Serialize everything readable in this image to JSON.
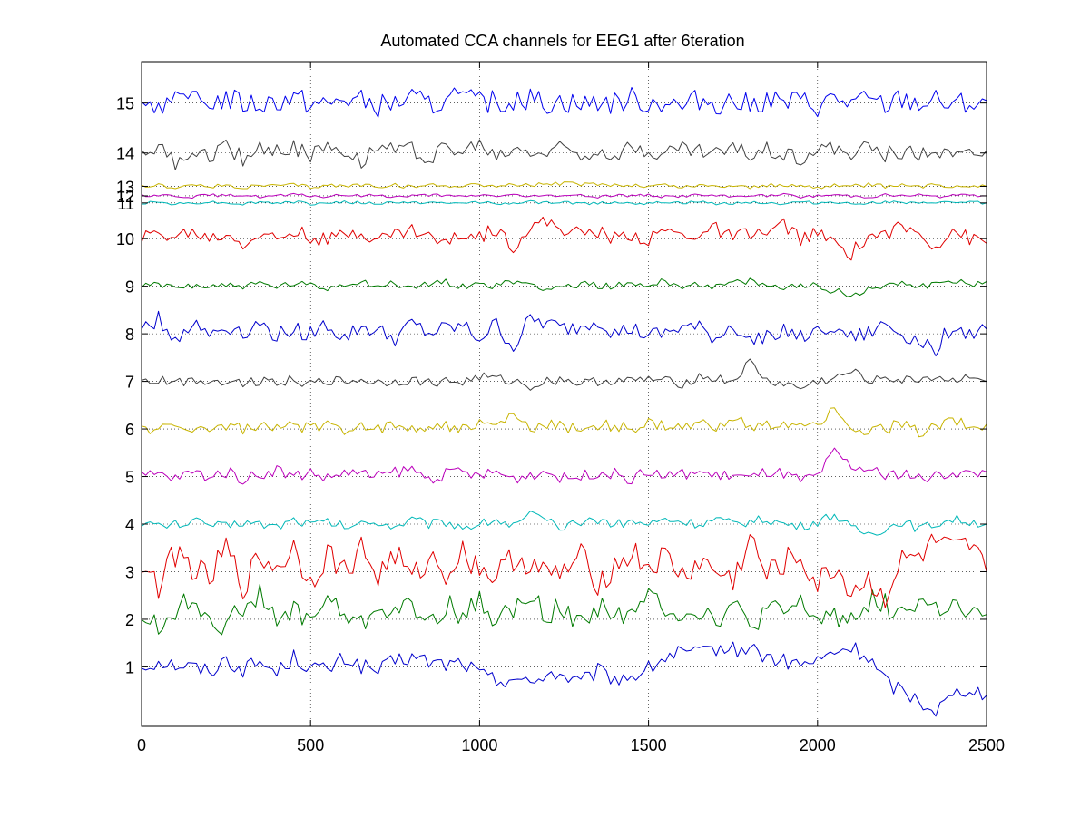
{
  "chart_data": {
    "type": "line",
    "title": "Automated CCA channels for EEG1 after  6teration",
    "xlabel": "",
    "ylabel": "",
    "xlim": [
      0,
      2500
    ],
    "xticks": [
      0,
      500,
      1000,
      1500,
      2000,
      2500
    ],
    "xtick_labels": [
      "0",
      "500",
      "1000",
      "1500",
      "2000",
      "2500"
    ],
    "grid": true,
    "ytick_labels": [
      "1",
      "2",
      "3",
      "4",
      "5",
      "6",
      "7",
      "8",
      "9",
      "10",
      "11",
      "12",
      "13",
      "14",
      "15"
    ],
    "x": [
      0,
      50,
      100,
      150,
      200,
      250,
      300,
      350,
      400,
      450,
      500,
      550,
      600,
      650,
      700,
      750,
      800,
      850,
      900,
      950,
      1000,
      1050,
      1100,
      1150,
      1200,
      1250,
      1300,
      1350,
      1400,
      1450,
      1500,
      1550,
      1600,
      1650,
      1700,
      1750,
      1800,
      1850,
      1900,
      1950,
      2000,
      2050,
      2100,
      2150,
      2200,
      2250,
      2300,
      2350,
      2400,
      2450,
      2500
    ],
    "series": [
      {
        "name": "1",
        "color": "#0000cc",
        "offset": 1,
        "amp": 0.35,
        "values": [
          0.0,
          0.12,
          0.05,
          0.0,
          -0.1,
          0.15,
          -0.05,
          0.1,
          -0.12,
          0.2,
          0.0,
          -0.08,
          0.18,
          0.02,
          -0.1,
          0.12,
          0.2,
          0.1,
          0.05,
          0.1,
          -0.15,
          -0.3,
          -0.2,
          -0.4,
          -0.1,
          -0.2,
          -0.35,
          -0.1,
          -0.25,
          -0.2,
          -0.05,
          0.2,
          0.3,
          0.25,
          0.4,
          0.35,
          0.4,
          0.2,
          0.1,
          0.05,
          0.1,
          0.3,
          0.4,
          0.2,
          -0.3,
          -0.5,
          -0.7,
          -0.9,
          -0.6,
          -0.4,
          -0.6
        ]
      },
      {
        "name": "2",
        "color": "#007a00",
        "offset": 2,
        "amp": 0.5,
        "values": [
          0.1,
          -0.2,
          0.2,
          0.4,
          0.1,
          -0.2,
          0.3,
          0.5,
          -0.1,
          0.2,
          0.0,
          0.4,
          0.1,
          -0.15,
          0.3,
          0.15,
          0.25,
          -0.1,
          0.3,
          0.1,
          0.35,
          0.0,
          0.2,
          0.4,
          0.15,
          0.2,
          -0.1,
          0.3,
          0.2,
          0.0,
          0.5,
          0.3,
          0.1,
          0.2,
          0.0,
          0.3,
          -0.2,
          0.2,
          0.1,
          0.3,
          0.0,
          0.1,
          0.0,
          0.4,
          0.3,
          0.1,
          0.4,
          0.2,
          0.3,
          0.0,
          0.1
        ]
      },
      {
        "name": "3",
        "color": "#e00000",
        "offset": 3,
        "amp": 0.6,
        "values": [
          0.2,
          -0.3,
          0.4,
          0.1,
          -0.2,
          0.5,
          -0.3,
          0.3,
          0.1,
          0.5,
          -0.2,
          0.4,
          0.0,
          0.5,
          -0.1,
          0.4,
          -0.2,
          0.3,
          0.0,
          0.4,
          0.1,
          -0.1,
          0.3,
          0.2,
          -0.1,
          0.0,
          0.3,
          -0.2,
          0.1,
          0.4,
          0.1,
          0.3,
          -0.1,
          0.2,
          0.0,
          -0.2,
          0.7,
          -0.1,
          0.2,
          0.3,
          -0.3,
          0.1,
          -0.4,
          -0.2,
          -0.5,
          0.2,
          0.3,
          0.6,
          0.4,
          0.5,
          0.0
        ]
      },
      {
        "name": "4",
        "color": "#00b8b8",
        "offset": 4,
        "amp": 0.2,
        "values": [
          0.05,
          -0.05,
          0.0,
          0.05,
          0.0,
          -0.05,
          0.05,
          0.0,
          -0.05,
          0.1,
          0.0,
          0.05,
          -0.05,
          0.0,
          0.05,
          -0.05,
          0.1,
          0.0,
          0.05,
          -0.05,
          0.0,
          0.1,
          -0.05,
          0.2,
          0.05,
          -0.1,
          0.05,
          0.1,
          0.0,
          0.05,
          0.0,
          0.1,
          0.05,
          0.0,
          0.1,
          0.0,
          0.05,
          0.1,
          0.0,
          -0.05,
          0.05,
          0.2,
          -0.1,
          -0.2,
          -0.1,
          0.05,
          -0.1,
          0.0,
          0.1,
          0.05,
          0.0
        ]
      },
      {
        "name": "5",
        "color": "#bb00bb",
        "offset": 5,
        "amp": 0.25,
        "values": [
          0.0,
          0.05,
          -0.05,
          0.1,
          0.0,
          0.1,
          -0.05,
          0.05,
          0.15,
          0.0,
          0.1,
          -0.05,
          0.1,
          0.05,
          0.0,
          0.1,
          0.15,
          -0.05,
          0.05,
          0.1,
          0.0,
          0.1,
          -0.05,
          0.05,
          0.1,
          -0.05,
          0.0,
          0.1,
          0.05,
          -0.05,
          0.1,
          0.0,
          0.05,
          0.1,
          0.0,
          0.05,
          -0.05,
          0.1,
          0.05,
          -0.1,
          0.0,
          0.5,
          0.2,
          0.15,
          0.0,
          0.1,
          -0.05,
          0.0,
          0.1,
          0.05,
          0.1
        ]
      },
      {
        "name": "6",
        "color": "#c8b400",
        "offset": 6,
        "amp": 0.25,
        "values": [
          0.0,
          0.02,
          0.0,
          0.05,
          -0.02,
          0.08,
          0.0,
          0.05,
          -0.02,
          0.1,
          0.0,
          0.05,
          0.0,
          0.1,
          0.0,
          0.08,
          0.0,
          0.1,
          0.05,
          0.0,
          0.1,
          0.05,
          0.3,
          0.0,
          0.1,
          0.05,
          0.0,
          0.1,
          0.05,
          0.0,
          0.1,
          0.05,
          0.0,
          0.1,
          0.05,
          0.3,
          0.0,
          0.05,
          0.1,
          0.0,
          0.1,
          0.5,
          -0.1,
          -0.05,
          0.0,
          0.1,
          -0.05,
          0.05,
          0.2,
          0.05,
          0.1
        ]
      },
      {
        "name": "7",
        "color": "#404040",
        "offset": 7,
        "amp": 0.2,
        "values": [
          0.0,
          0.02,
          -0.02,
          0.03,
          0.0,
          0.02,
          -0.03,
          0.02,
          0.0,
          0.03,
          -0.05,
          0.02,
          0.0,
          0.03,
          -0.02,
          0.0,
          0.02,
          -0.03,
          0.0,
          -0.02,
          0.1,
          0.05,
          0.0,
          -0.1,
          0.0,
          0.05,
          -0.05,
          0.0,
          0.02,
          0.0,
          0.05,
          0.0,
          -0.05,
          0.1,
          0.05,
          0.0,
          0.4,
          0.0,
          -0.05,
          -0.15,
          0.0,
          0.05,
          0.2,
          0.05,
          0.1,
          0.0,
          0.05,
          0.1,
          0.0,
          0.15,
          0.0
        ]
      },
      {
        "name": "8",
        "color": "#0000cc",
        "offset": 8,
        "amp": 0.35,
        "values": [
          0.1,
          0.3,
          -0.1,
          0.2,
          0.0,
          0.15,
          0.05,
          0.2,
          -0.05,
          0.1,
          0.0,
          0.2,
          -0.1,
          0.15,
          0.05,
          -0.1,
          0.2,
          0.0,
          0.1,
          0.15,
          -0.1,
          0.2,
          -0.3,
          0.3,
          0.2,
          0.1,
          0.15,
          0.3,
          0.0,
          0.1,
          -0.05,
          0.0,
          0.15,
          0.1,
          -0.1,
          0.2,
          -0.2,
          0.0,
          0.1,
          -0.1,
          0.0,
          0.2,
          -0.1,
          0.0,
          0.2,
          0.0,
          -0.15,
          -0.3,
          0.2,
          0.0,
          0.1
        ]
      },
      {
        "name": "9",
        "color": "#007a00",
        "offset": 9,
        "amp": 0.15,
        "values": [
          0.0,
          0.02,
          -0.02,
          0.03,
          0.0,
          0.02,
          0.0,
          0.05,
          -0.02,
          0.05,
          0.0,
          -0.05,
          0.05,
          0.1,
          0.0,
          0.05,
          -0.05,
          0.05,
          0.1,
          0.0,
          0.05,
          0.0,
          0.1,
          0.05,
          -0.05,
          0.0,
          0.05,
          0.02,
          0.0,
          0.05,
          0.02,
          0.1,
          0.0,
          0.05,
          0.0,
          0.05,
          0.1,
          0.0,
          -0.05,
          0.05,
          0.0,
          -0.1,
          -0.2,
          -0.05,
          0.0,
          0.1,
          0.0,
          0.05,
          0.1,
          0.05,
          0.1
        ]
      },
      {
        "name": "10",
        "color": "#e00000",
        "offset": 10,
        "amp": 0.3,
        "values": [
          0.0,
          0.1,
          0.05,
          0.15,
          0.0,
          0.1,
          -0.1,
          0.1,
          0.0,
          0.15,
          0.05,
          -0.05,
          0.1,
          0.15,
          0.0,
          0.1,
          0.2,
          0.05,
          -0.1,
          0.1,
          0.05,
          0.2,
          -0.15,
          0.25,
          0.35,
          0.2,
          0.1,
          0.15,
          0.0,
          0.1,
          -0.05,
          0.2,
          0.05,
          0.1,
          0.2,
          0.0,
          0.15,
          0.1,
          0.3,
          0.0,
          0.1,
          -0.1,
          -0.3,
          0.05,
          0.1,
          0.25,
          0.1,
          -0.15,
          0.2,
          0.0,
          -0.1
        ]
      },
      {
        "name": "11",
        "color": "#00b8b8",
        "offset": 10.75,
        "amp": 0.06,
        "values": [
          0.0,
          0.02,
          -0.02,
          0.0,
          0.02,
          0.0,
          -0.02,
          0.02,
          0.0,
          0.02,
          -0.02,
          0.0,
          0.02,
          0.0,
          -0.02,
          0.02,
          0.0,
          0.02,
          -0.02,
          0.0,
          0.02,
          0.0,
          -0.02,
          0.02,
          0.0,
          0.02,
          -0.02,
          0.0,
          0.02,
          0.0,
          -0.02,
          0.02,
          0.0,
          0.02,
          -0.02,
          0.0,
          0.02,
          0.0,
          -0.02,
          0.02,
          0.0,
          0.02,
          -0.02,
          0.0,
          0.02,
          0.0,
          -0.02,
          0.02,
          0.0,
          0.02,
          0.0
        ]
      },
      {
        "name": "12",
        "color": "#bb00bb",
        "offset": 10.9,
        "amp": 0.06,
        "values": [
          0.0,
          0.02,
          0.0,
          -0.02,
          0.02,
          0.0,
          0.02,
          -0.02,
          0.0,
          0.02,
          0.0,
          -0.02,
          0.02,
          0.0,
          0.02,
          -0.02,
          0.0,
          0.02,
          0.0,
          -0.02,
          0.02,
          0.0,
          0.02,
          -0.02,
          0.0,
          0.02,
          0.0,
          -0.02,
          0.02,
          0.0,
          0.02,
          -0.02,
          0.0,
          0.02,
          0.0,
          -0.02,
          0.02,
          0.0,
          0.02,
          -0.02,
          0.0,
          0.02,
          0.0,
          -0.02,
          0.02,
          0.0,
          0.02,
          -0.02,
          0.0,
          0.02,
          0.0
        ]
      },
      {
        "name": "13",
        "color": "#c8b400",
        "offset": 11.1,
        "amp": 0.08,
        "values": [
          0.0,
          0.02,
          -0.02,
          0.02,
          0.0,
          0.02,
          -0.02,
          0.02,
          0.0,
          0.03,
          -0.02,
          0.02,
          0.0,
          0.03,
          0.0,
          0.02,
          -0.02,
          0.03,
          0.0,
          0.02,
          0.04,
          0.0,
          0.03,
          0.02,
          0.05,
          0.06,
          0.04,
          0.05,
          0.03,
          0.02,
          0.0,
          0.03,
          -0.02,
          0.02,
          0.0,
          0.02,
          -0.02,
          0.03,
          0.0,
          0.02,
          -0.02,
          0.02,
          0.0,
          0.03,
          0.0,
          0.02,
          -0.02,
          0.03,
          0.0,
          0.02,
          0.0
        ]
      },
      {
        "name": "14",
        "color": "#404040",
        "offset": 11.8,
        "amp": 0.35,
        "values": [
          0.0,
          0.1,
          -0.2,
          0.05,
          -0.1,
          0.2,
          -0.15,
          0.1,
          0.0,
          0.15,
          -0.1,
          0.2,
          0.1,
          -0.15,
          0.2,
          0.05,
          0.1,
          -0.1,
          0.15,
          0.0,
          0.2,
          -0.1,
          0.1,
          0.05,
          0.0,
          0.15,
          -0.05,
          0.1,
          0.0,
          0.1,
          0.05,
          0.0,
          0.1,
          0.05,
          0.0,
          0.1,
          -0.05,
          0.1,
          0.0,
          -0.1,
          0.1,
          0.05,
          0.0,
          0.1,
          -0.05,
          0.05,
          0.0,
          0.1,
          -0.05,
          0.0,
          0.05
        ]
      },
      {
        "name": "15",
        "color": "#0000ee",
        "offset": 12.85,
        "amp": 0.5,
        "values": [
          0.0,
          0.0,
          0.0,
          0.0,
          0.02,
          0.1,
          0.0,
          -0.02,
          0.05,
          0.1,
          0.0,
          -0.05,
          0.1,
          0.05,
          -0.05,
          0.0,
          0.1,
          -0.05,
          0.05,
          0.1,
          0.0,
          0.05,
          -0.05,
          0.1,
          0.0,
          0.05,
          -0.05,
          0.05,
          0.0,
          0.1,
          0.0,
          0.05,
          -0.1,
          0.1,
          0.0,
          0.05,
          -0.05,
          0.1,
          0.0,
          0.05,
          -0.05,
          0.1,
          0.0,
          0.05,
          -0.05,
          0.1,
          0.0,
          0.05,
          -0.05,
          0.0,
          0.05
        ]
      }
    ]
  }
}
